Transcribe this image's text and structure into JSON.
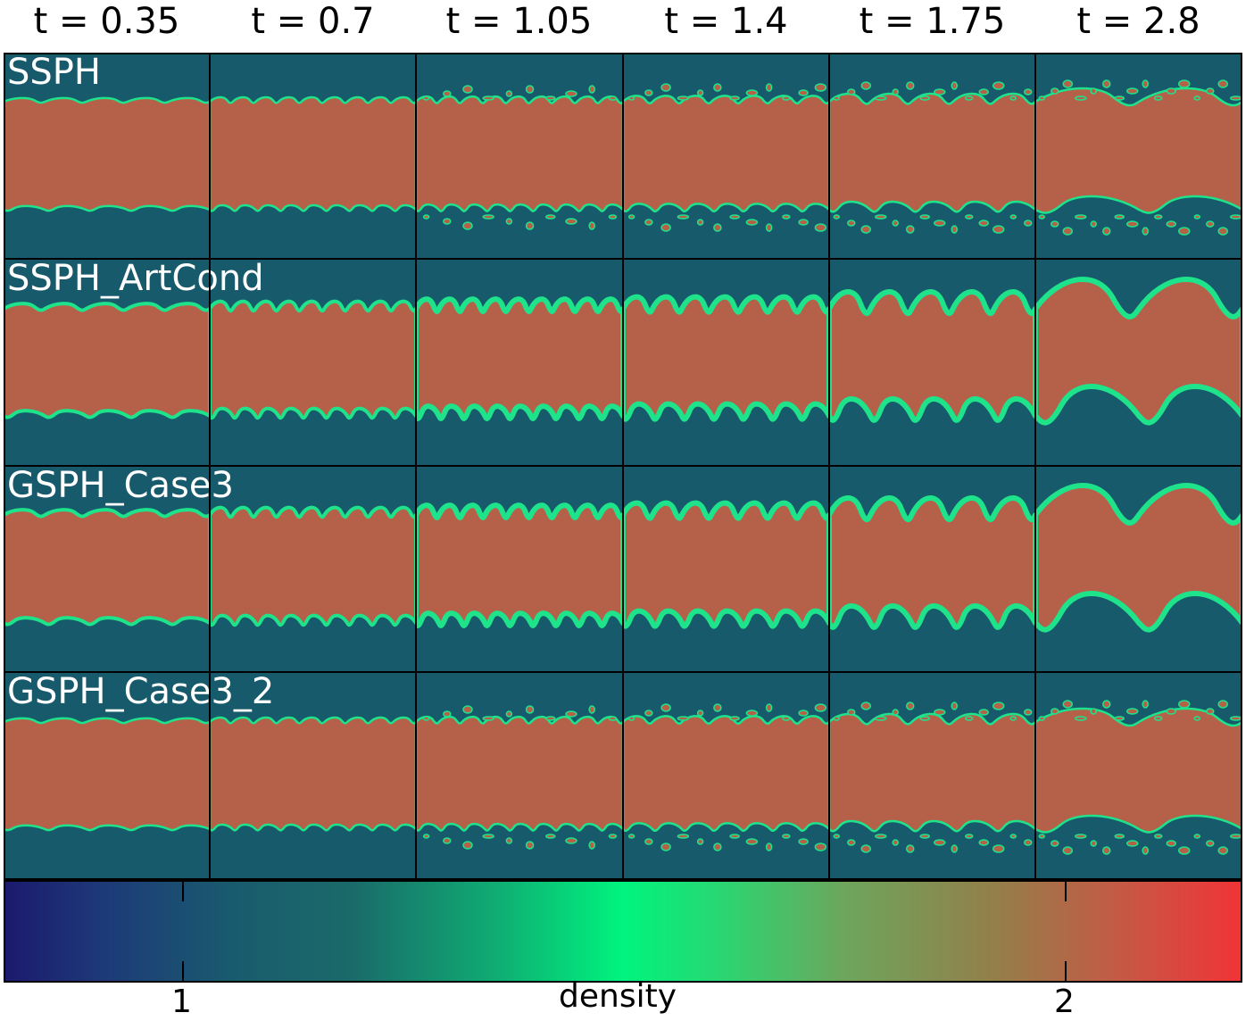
{
  "column_titles": [
    "t = 0.35",
    "t = 0.7",
    "t = 1.05",
    "t = 1.4",
    "t = 1.75",
    "t = 2.8"
  ],
  "row_labels": [
    "SSPH",
    "SSPH_ArtCond",
    "GSPH_Case3",
    "GSPH_Case3_2"
  ],
  "colorbar": {
    "label": "density",
    "tick_labels": [
      "1",
      "2"
    ],
    "tick_values": [
      1,
      2
    ],
    "range": [
      0.8,
      2.2
    ]
  },
  "colors": {
    "background_fluid": "#175a6c",
    "dense_fluid": "#b5614a",
    "interface": "#1ee38a",
    "low": "#1c1a6e",
    "mid": "#00f47e",
    "high": "#f13337"
  }
}
